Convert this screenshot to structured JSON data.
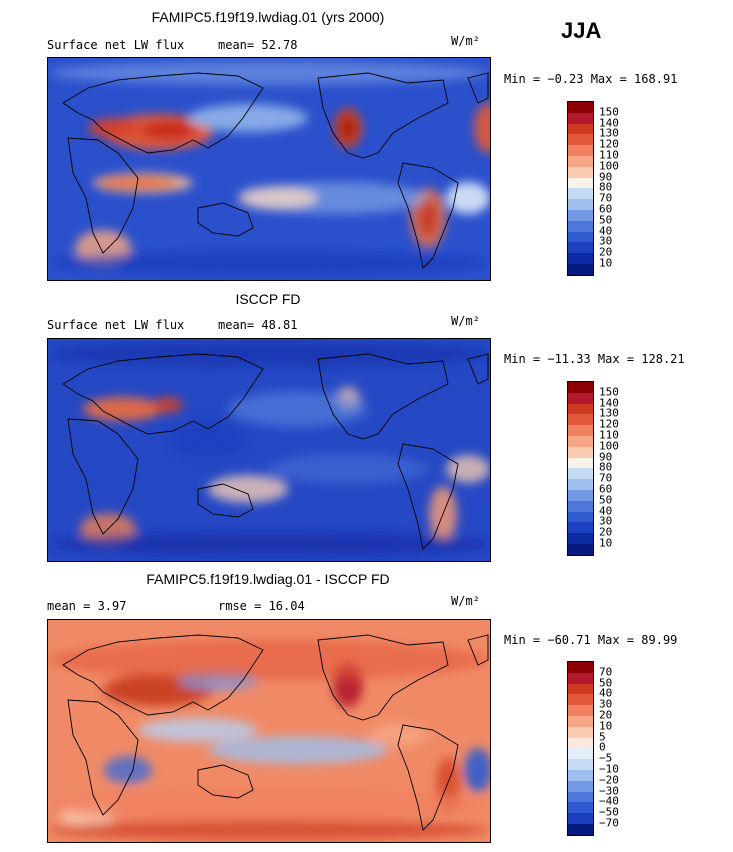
{
  "season": "JJA",
  "units": "W/m²",
  "panels": [
    {
      "id": "model",
      "title": "FAMIPC5.f19f19.lwdiag.01 (yrs 2000)",
      "left_label": "Surface net LW flux",
      "stat1": "mean=  52.78",
      "stat2": "",
      "minmax": "Min =  −0.23 Max = 168.91",
      "colorbar": {
        "labels": [
          "150",
          "140",
          "130",
          "120",
          "110",
          "100",
          "90",
          "80",
          "70",
          "60",
          "50",
          "40",
          "30",
          "20",
          "10"
        ],
        "colors": [
          "#8b0000",
          "#b2182b",
          "#cf3a22",
          "#e2583b",
          "#ef7f5e",
          "#f6a585",
          "#fbcbb1",
          "#f8f3ea",
          "#c6dcf5",
          "#9fc0ee",
          "#7299e4",
          "#4d77da",
          "#2f5bd0",
          "#1a3fbf",
          "#0d2aa3",
          "#061a80"
        ]
      },
      "map": {
        "base": "#2a50cc",
        "palette": "positive"
      }
    },
    {
      "id": "obs",
      "title": "ISCCP FD",
      "left_label": "Surface net LW flux",
      "stat1": "mean=  48.81",
      "stat2": "",
      "minmax": "Min = −11.33 Max = 128.21",
      "colorbar": {
        "labels": [
          "150",
          "140",
          "130",
          "120",
          "110",
          "100",
          "90",
          "80",
          "70",
          "60",
          "50",
          "40",
          "30",
          "20",
          "10"
        ],
        "colors": [
          "#8b0000",
          "#b2182b",
          "#cf3a22",
          "#e2583b",
          "#ef7f5e",
          "#f6a585",
          "#fbcbb1",
          "#f8f3ea",
          "#c6dcf5",
          "#9fc0ee",
          "#7299e4",
          "#4d77da",
          "#2f5bd0",
          "#1a3fbf",
          "#0d2aa3",
          "#061a80"
        ]
      },
      "map": {
        "base": "#2548c4",
        "palette": "positive"
      }
    },
    {
      "id": "diff",
      "title": "FAMIPC5.f19f19.lwdiag.01 - ISCCP FD",
      "left_label": "mean =   3.97",
      "stat1": "rmse =  16.04",
      "stat2": "",
      "minmax": "Min = −60.71 Max =  89.99",
      "colorbar": {
        "labels": [
          "70",
          "50",
          "40",
          "30",
          "20",
          "10",
          "5",
          "0",
          "−5",
          "−10",
          "−20",
          "−30",
          "−40",
          "−50",
          "−70"
        ],
        "colors": [
          "#8b0000",
          "#b2182b",
          "#cf3a22",
          "#e2583b",
          "#ef7f5e",
          "#f6a585",
          "#fbcbb1",
          "#fde9df",
          "#e4eefa",
          "#c6dcf5",
          "#9fc0ee",
          "#7299e4",
          "#4d77da",
          "#2f5bd0",
          "#1a3fbf",
          "#061a80"
        ]
      },
      "map": {
        "base": "#f08a66",
        "palette": "diff"
      }
    }
  ],
  "chart_data": {
    "type": "heatmap",
    "description_series": [
      {
        "name": "FAMIPC5.f19f19.lwdiag.01 (yrs 2000)",
        "mean": 52.78,
        "min": -0.23,
        "max": 168.91
      },
      {
        "name": "ISCCP FD",
        "mean": 48.81,
        "min": -11.33,
        "max": 128.21
      },
      {
        "name": "FAMIPC5.f19f19.lwdiag.01 - ISCCP FD",
        "mean": 3.97,
        "rmse": 16.04,
        "min": -60.71,
        "max": 89.99
      }
    ],
    "contour_levels_abs": [
      10,
      20,
      30,
      40,
      50,
      60,
      70,
      80,
      90,
      100,
      110,
      120,
      130,
      140,
      150
    ],
    "contour_levels_diff": [
      -70,
      -50,
      -40,
      -30,
      -20,
      -10,
      -5,
      0,
      5,
      10,
      20,
      30,
      40,
      50,
      70
    ],
    "units": "W/m²"
  }
}
